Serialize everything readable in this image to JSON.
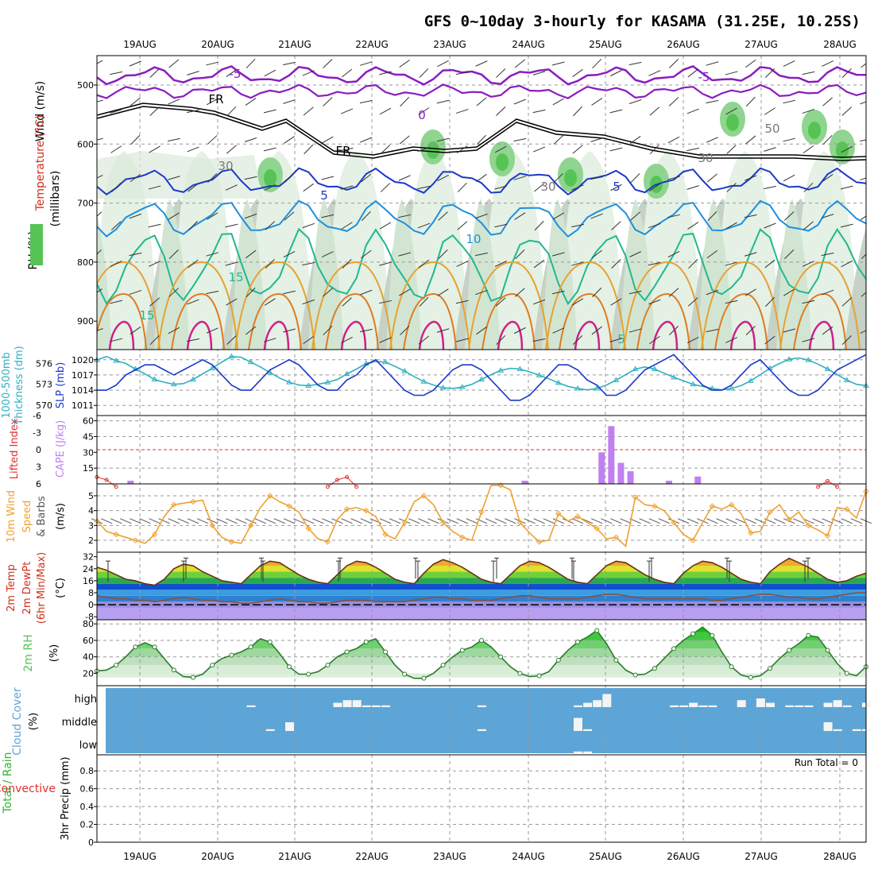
{
  "title": "GFS 0~10day 3-hourly for KASAMA (31.25E, 10.25S)",
  "dates": [
    "19AUG",
    "20AUG",
    "21AUG",
    "22AUG",
    "23AUG",
    "24AUG",
    "25AUG",
    "26AUG",
    "27AUG",
    "28AUG"
  ],
  "colors": {
    "wind": "#555555",
    "temp": "#7b00c8",
    "tempwarm": "#d0301a",
    "rh": "#55c455",
    "thick": "#30b0c0",
    "slp": "#1a38c8",
    "li": "#e03030",
    "cape": "#c080f0",
    "wspd": "#f0a030",
    "cloud": "#5da5d6",
    "precip_total": "#2fb52f",
    "precip_conv": "#e03030"
  },
  "panels": {
    "upper": {
      "ylabel": "(millibars)",
      "labels": [
        "Wind (m/s)",
        "Temperature (°C)",
        "RH (%)"
      ],
      "yticks": [
        "500",
        "600",
        "700",
        "800",
        "900"
      ],
      "contour_labels": [
        "-5",
        "-5",
        "FR",
        "FR",
        "0",
        "5",
        "5",
        "10",
        "15",
        "15",
        "5",
        "30",
        "30",
        "50",
        "30"
      ]
    },
    "slp": {
      "left_labels": [
        "1000-500mb",
        "Thickness (dm)"
      ],
      "right_label": "SLP (mb)",
      "thick_ticks": [
        "576",
        "573",
        "570"
      ],
      "slp_ticks": [
        "1020",
        "1017",
        "1014",
        "1011"
      ]
    },
    "cape": {
      "left_label": "Lifted Index",
      "right_label": "CAPE (J/kg)",
      "li_ticks": [
        "-6",
        "-3",
        "0",
        "3",
        "6"
      ],
      "cape_ticks": [
        "60",
        "45",
        "30",
        "15"
      ]
    },
    "wind10": {
      "labels": [
        "10m Wind",
        "Speed",
        "& Barbs"
      ],
      "unit": "(m/s)",
      "yticks": [
        "5",
        "4",
        "3",
        "2"
      ]
    },
    "temp2m": {
      "labels": [
        "2m Temp",
        "2m DewPt",
        "(6hr Min/Max)"
      ],
      "unit": "(°C)",
      "yticks": [
        "32",
        "24",
        "16",
        "8",
        "0",
        "-8"
      ]
    },
    "rh2m": {
      "labels": [
        "2m RH"
      ],
      "unit": "(%)",
      "yticks": [
        "80",
        "60",
        "40",
        "20"
      ]
    },
    "cloud": {
      "labels": [
        "Cloud Cover"
      ],
      "unit": "(%)",
      "levels": [
        "high",
        "middle",
        "low"
      ]
    },
    "precip": {
      "labels": [
        "Total / Rain",
        "Convective"
      ],
      "unit": "3hr Precip (mm)",
      "yticks": [
        "0.8",
        "0.6",
        "0.4",
        "0.2",
        "0"
      ],
      "run_total": "Run Total = 0"
    }
  },
  "chart_data": [
    {
      "panel": "thickness_slp",
      "type": "line",
      "series": [
        {
          "name": "1000-500mb Thickness (dm)",
          "values": [
            576.5,
            577.0,
            576.4,
            576.0,
            575.2,
            574.5,
            573.7,
            573.3,
            573.0,
            573.1,
            573.7,
            574.5,
            575.3,
            576.2,
            577.0,
            576.9,
            576.2,
            575.5,
            574.7,
            573.9,
            573.3,
            572.9,
            572.8,
            573.0,
            573.3,
            573.7,
            574.5,
            575.2,
            576.0,
            576.3,
            576.2,
            575.6,
            574.9,
            574.1,
            573.4,
            572.9,
            572.5,
            572.4,
            572.6,
            573.0,
            573.7,
            574.4,
            575.0,
            575.3,
            575.2,
            574.8,
            574.3,
            573.8,
            573.2,
            572.7,
            572.4,
            572.2,
            572.4,
            572.9,
            573.6,
            574.4,
            575.2,
            575.5,
            575.2,
            574.6,
            574.0,
            573.5,
            573.0,
            572.7,
            572.4,
            572.2,
            572.4,
            572.8,
            573.5,
            574.4,
            575.3,
            576.0,
            576.6,
            576.8,
            576.5,
            575.9,
            575.2,
            574.4,
            573.6,
            573.0,
            572.8
          ]
        },
        {
          "name": "SLP (mb)",
          "values": [
            1014,
            1014,
            1015,
            1017,
            1018,
            1019,
            1019,
            1018,
            1017,
            1018,
            1019,
            1020,
            1019,
            1017,
            1015,
            1014,
            1014,
            1016,
            1018,
            1019,
            1020,
            1019,
            1017,
            1015,
            1014,
            1014,
            1016,
            1017,
            1019,
            1020,
            1018,
            1016,
            1014,
            1013,
            1013,
            1014,
            1016,
            1018,
            1019,
            1019,
            1018,
            1016,
            1014,
            1012,
            1012,
            1013,
            1015,
            1017,
            1019,
            1019,
            1018,
            1016,
            1015,
            1013,
            1013,
            1014,
            1016,
            1018,
            1019,
            1020,
            1021,
            1019,
            1017,
            1015,
            1014,
            1014,
            1015,
            1017,
            1019,
            1020,
            1018,
            1016,
            1014,
            1013,
            1013,
            1014,
            1016,
            1018,
            1019,
            1020,
            1021
          ]
        }
      ]
    },
    {
      "panel": "li_cape",
      "type": "bar",
      "series": [
        {
          "name": "CAPE (J/kg)",
          "points": [
            [
              3.5,
              3
            ],
            [
              44.5,
              3
            ],
            [
              52.5,
              30
            ],
            [
              53.5,
              55
            ],
            [
              54.5,
              20
            ],
            [
              55.5,
              12
            ],
            [
              59.5,
              3
            ],
            [
              62.5,
              7
            ]
          ]
        },
        {
          "name": "Lifted Index",
          "points": [
            [
              0,
              4.8
            ],
            [
              1,
              5.3
            ],
            [
              2,
              6.5
            ],
            [
              24,
              6.5
            ],
            [
              25,
              5.3
            ],
            [
              26,
              4.8
            ],
            [
              27,
              6.5
            ],
            [
              75,
              6.5
            ],
            [
              76,
              5.5
            ],
            [
              77,
              6.5
            ]
          ]
        }
      ]
    },
    {
      "panel": "wind10m",
      "type": "line",
      "series": [
        {
          "name": "10m Wind Speed",
          "values": [
            3.3,
            2.6,
            2.4,
            2.2,
            2.0,
            1.8,
            2.4,
            3.6,
            4.4,
            4.5,
            4.6,
            4.7,
            3.0,
            2.2,
            1.9,
            1.8,
            3.0,
            4.2,
            5.0,
            4.6,
            4.3,
            3.9,
            2.8,
            2.1,
            1.9,
            3.4,
            4.1,
            4.2,
            4.0,
            3.6,
            2.4,
            2.1,
            3.2,
            4.6,
            5.0,
            4.4,
            3.2,
            2.6,
            2.2,
            2.0,
            3.9,
            5.7,
            5.7,
            5.4,
            3.2,
            2.5,
            1.9,
            2.0,
            3.8,
            3.3,
            3.6,
            3.2,
            2.8,
            2.1,
            2.2,
            1.6,
            4.9,
            4.4,
            4.3,
            4.0,
            3.2,
            2.4,
            2.0,
            3.2,
            4.3,
            4.1,
            4.4,
            3.8,
            2.5,
            2.6,
            3.9,
            4.4,
            3.4,
            3.9,
            3.0,
            2.7,
            2.3,
            4.2,
            4.1,
            3.5,
            5.3
          ]
        }
      ]
    },
    {
      "panel": "temp2m",
      "type": "area",
      "series": [
        {
          "name": "2m Temp",
          "values": [
            25,
            23,
            20,
            17,
            16,
            14,
            13,
            17,
            24,
            27,
            26,
            22,
            19,
            16,
            15,
            14,
            20,
            26,
            29,
            28,
            24,
            20,
            17,
            15,
            14,
            20,
            26,
            29,
            28,
            25,
            21,
            17,
            15,
            14,
            21,
            27,
            30,
            28,
            25,
            21,
            17,
            15,
            14,
            20,
            26,
            29,
            28,
            25,
            21,
            17,
            15,
            14,
            20,
            26,
            29,
            28,
            24,
            20,
            17,
            15,
            14,
            21,
            26,
            29,
            28,
            25,
            21,
            17,
            15,
            14,
            22,
            27,
            31,
            28,
            25,
            21,
            17,
            15,
            16,
            19,
            21
          ]
        },
        {
          "name": "2m DewPt",
          "values": [
            6,
            5,
            4,
            4,
            3,
            3,
            2,
            3,
            4,
            5,
            4,
            3,
            3,
            2,
            2,
            1,
            1,
            2,
            3,
            4,
            3,
            2,
            2,
            1,
            1,
            2,
            3,
            3,
            3,
            2,
            2,
            2,
            2,
            3,
            4,
            5,
            5,
            4,
            4,
            3,
            3,
            3,
            4,
            5,
            6,
            6,
            5,
            4,
            4,
            4,
            4,
            5,
            6,
            7,
            7,
            6,
            5,
            4,
            4,
            4,
            4,
            4,
            4,
            4,
            3,
            3,
            4,
            5,
            6,
            7,
            7,
            6,
            5,
            5,
            4,
            4,
            5,
            6,
            7,
            8,
            8
          ]
        }
      ]
    },
    {
      "panel": "rh2m",
      "type": "area",
      "series": [
        {
          "name": "2m RH",
          "values": [
            23,
            24,
            30,
            40,
            52,
            57,
            52,
            38,
            24,
            16,
            15,
            19,
            30,
            38,
            42,
            46,
            52,
            62,
            58,
            44,
            28,
            19,
            19,
            22,
            30,
            40,
            46,
            50,
            58,
            62,
            46,
            30,
            19,
            14,
            14,
            20,
            30,
            40,
            48,
            52,
            60,
            52,
            40,
            28,
            20,
            16,
            17,
            22,
            36,
            48,
            58,
            64,
            72,
            56,
            36,
            24,
            18,
            19,
            26,
            38,
            50,
            60,
            68,
            76,
            66,
            46,
            28,
            18,
            15,
            17,
            26,
            38,
            48,
            56,
            66,
            64,
            48,
            32,
            20,
            17,
            28
          ]
        }
      ]
    },
    {
      "panel": "cloud",
      "type": "bar",
      "series": [
        {
          "name": "high",
          "points": [
            [
              16,
              2
            ],
            [
              25,
              5
            ],
            [
              26,
              8
            ],
            [
              27,
              8
            ],
            [
              28,
              2
            ],
            [
              29,
              2
            ],
            [
              30,
              2
            ],
            [
              40,
              2
            ],
            [
              50,
              2
            ],
            [
              51,
              5
            ],
            [
              52,
              8
            ],
            [
              53,
              15
            ],
            [
              60,
              2
            ],
            [
              61,
              2
            ],
            [
              62,
              5
            ],
            [
              63,
              2
            ],
            [
              64,
              2
            ],
            [
              67,
              8
            ],
            [
              69,
              10
            ],
            [
              70,
              5
            ],
            [
              72,
              2
            ],
            [
              73,
              2
            ],
            [
              74,
              2
            ],
            [
              76,
              5
            ],
            [
              77,
              8
            ],
            [
              78,
              2
            ],
            [
              80,
              5
            ],
            [
              84,
              2
            ],
            [
              85,
              2
            ]
          ]
        },
        {
          "name": "middle",
          "points": [
            [
              18,
              2
            ],
            [
              20,
              10
            ],
            [
              40,
              2
            ],
            [
              50,
              15
            ],
            [
              51,
              2
            ],
            [
              76,
              10
            ],
            [
              77,
              2
            ],
            [
              79,
              2
            ],
            [
              80,
              2
            ],
            [
              82,
              15
            ],
            [
              84,
              10
            ],
            [
              85,
              8
            ],
            [
              86,
              5
            ]
          ]
        },
        {
          "name": "low",
          "points": [
            [
              50,
              2
            ],
            [
              51,
              2
            ]
          ]
        }
      ]
    },
    {
      "panel": "precip3hr",
      "type": "bar",
      "ylim": [
        0,
        1
      ],
      "series": [
        {
          "name": "Total / Rain",
          "values": []
        },
        {
          "name": "Convective",
          "values": []
        }
      ]
    }
  ]
}
